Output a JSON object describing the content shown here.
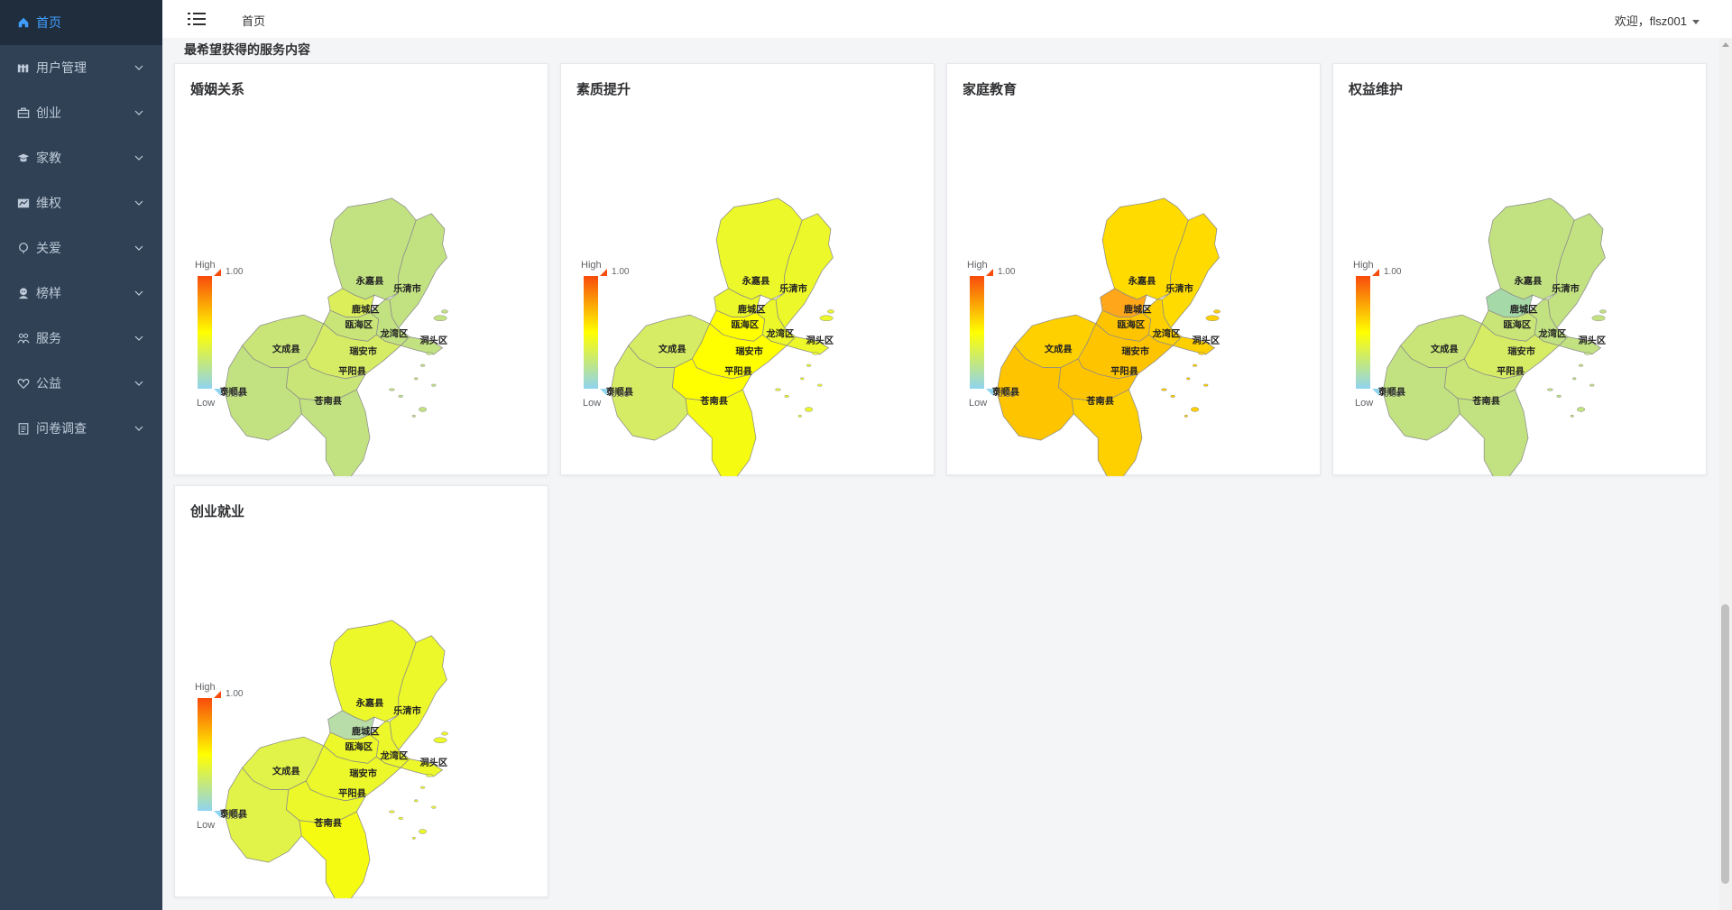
{
  "app": {
    "breadcrumb": "首页",
    "welcome": "欢迎，flsz001"
  },
  "sidebar": {
    "items": [
      {
        "label": "首页",
        "icon": "home-icon",
        "active": true,
        "expandable": false
      },
      {
        "label": "用户管理",
        "icon": "users-icon",
        "active": false,
        "expandable": true
      },
      {
        "label": "创业",
        "icon": "briefcase-icon",
        "active": false,
        "expandable": true
      },
      {
        "label": "家教",
        "icon": "graduation-cap-icon",
        "active": false,
        "expandable": true
      },
      {
        "label": "维权",
        "icon": "chart-icon",
        "active": false,
        "expandable": true
      },
      {
        "label": "关爱",
        "icon": "heart-balloon-icon",
        "active": false,
        "expandable": true
      },
      {
        "label": "榜样",
        "icon": "person-icon",
        "active": false,
        "expandable": true
      },
      {
        "label": "服务",
        "icon": "people-icon",
        "active": false,
        "expandable": true
      },
      {
        "label": "公益",
        "icon": "heart-icon",
        "active": false,
        "expandable": true
      },
      {
        "label": "问卷调查",
        "icon": "clipboard-icon",
        "active": false,
        "expandable": true
      }
    ]
  },
  "section": {
    "title": "最希望获得的服务内容"
  },
  "legend": {
    "high_label": "High",
    "low_label": "Low",
    "max": "1.00",
    "min": "0.00"
  },
  "regions": [
    "永嘉县",
    "乐清市",
    "鹿城区",
    "瓯海区",
    "龙湾区",
    "洞头区",
    "文成县",
    "瑞安市",
    "平阳县",
    "泰顺县",
    "苍南县"
  ],
  "colors": {
    "sidebar_bg": "#304156",
    "active_bg": "#1f2d3d",
    "accent": "#409eff",
    "legend_high": "#f84b0c",
    "legend_mid": "#ffff00",
    "legend_low": "#8fd3ef"
  },
  "chart_data": [
    {
      "type": "choropleth",
      "title": "婚姻关系",
      "value_range": [
        0,
        1
      ],
      "fills": {
        "永嘉县": "#c2e282",
        "乐清市": "#c2e282",
        "鹿城区": "#dcef5a",
        "瓯海区": "#c9e578",
        "龙湾区": "#c2e282",
        "洞头区": "#c2e282",
        "文成县": "#c9e578",
        "瑞安市": "#d6ec64",
        "平阳县": "#c9e578",
        "泰顺县": "#c2e282",
        "苍南县": "#c2e282"
      }
    },
    {
      "type": "choropleth",
      "title": "素质提升",
      "value_range": [
        0,
        1
      ],
      "fills": {
        "永嘉县": "#ecf829",
        "乐清市": "#ecf829",
        "鹿城区": "#ecf829",
        "瓯海区": "#ffff00",
        "龙湾区": "#ecf829",
        "洞头区": "#ecf829",
        "文成县": "#d6ec64",
        "瑞安市": "#ffff00",
        "平阳县": "#ffff00",
        "泰顺县": "#d6ec64",
        "苍南县": "#f6fb12"
      }
    },
    {
      "type": "choropleth",
      "title": "家庭教育",
      "value_range": [
        0,
        1
      ],
      "fills": {
        "永嘉县": "#ffdb00",
        "乐清市": "#ffdb00",
        "鹿城区": "#ffa61a",
        "瓯海区": "#ffc400",
        "龙湾区": "#ffd000",
        "洞头区": "#ffd000",
        "文成县": "#ffd000",
        "瑞安市": "#ffc400",
        "平阳县": "#ffc400",
        "泰顺县": "#ffc400",
        "苍南县": "#ffd000"
      }
    },
    {
      "type": "choropleth",
      "title": "权益维护",
      "value_range": [
        0,
        1
      ],
      "fills": {
        "永嘉县": "#c2e282",
        "乐清市": "#c2e282",
        "鹿城区": "#a6d9a8",
        "瓯海区": "#c9e578",
        "龙湾区": "#c2e282",
        "洞头区": "#c2e282",
        "文成县": "#c9e578",
        "瑞安市": "#d6ec64",
        "平阳县": "#c9e578",
        "泰顺县": "#c2e282",
        "苍南县": "#c2e282"
      }
    },
    {
      "type": "choropleth",
      "title": "创业就业",
      "value_range": [
        0,
        1
      ],
      "fills": {
        "永嘉县": "#ecf829",
        "乐清市": "#ecf829",
        "鹿城区": "#b8dda8",
        "瓯海区": "#ecf829",
        "龙湾区": "#ecf829",
        "洞头区": "#ecf829",
        "文成县": "#e1f348",
        "瑞安市": "#ecf829",
        "平阳县": "#ecf829",
        "泰顺县": "#e1f348",
        "苍南县": "#f6fb12"
      }
    }
  ]
}
